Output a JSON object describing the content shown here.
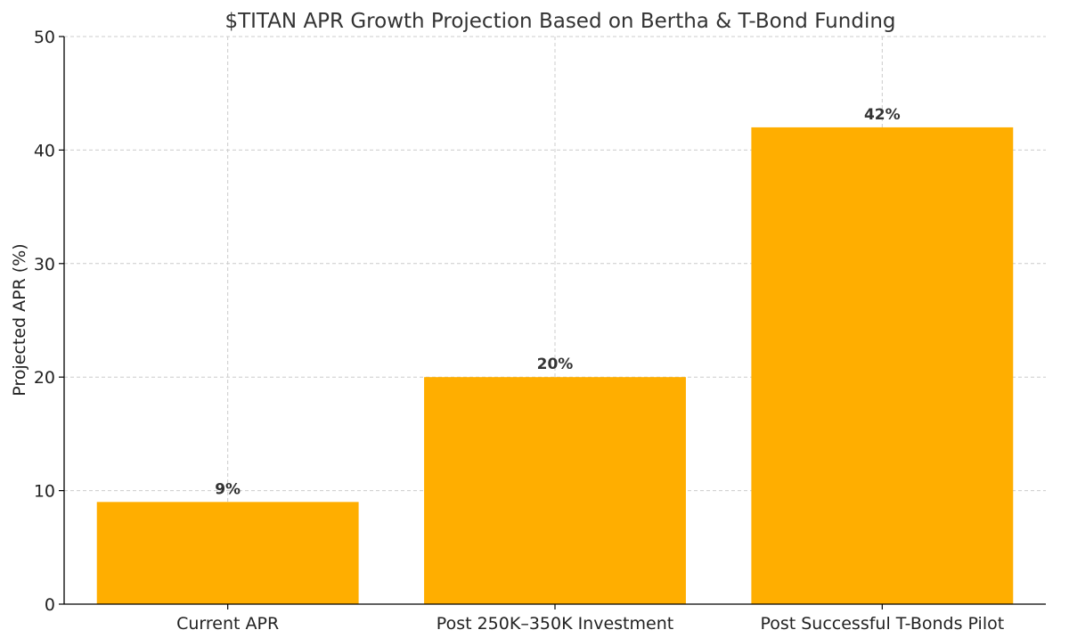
{
  "chart_data": {
    "type": "bar",
    "title": "$TITAN APR Growth Projection Based on Bertha & T-Bond Funding",
    "xlabel": "",
    "ylabel": "Projected APR (%)",
    "categories": [
      "Current APR",
      "Post 250K–350K Investment",
      "Post Successful T-Bonds Pilot"
    ],
    "values": [
      9,
      20,
      42
    ],
    "data_labels": [
      "9%",
      "20%",
      "42%"
    ],
    "ylim": [
      0,
      50
    ],
    "yticks": [
      0,
      10,
      20,
      30,
      40,
      50
    ],
    "grid": true,
    "legend": "none",
    "colors": {
      "bar": "#FFAE00",
      "grid": "#cccccc",
      "axis": "#000000",
      "text": "#333333"
    }
  }
}
